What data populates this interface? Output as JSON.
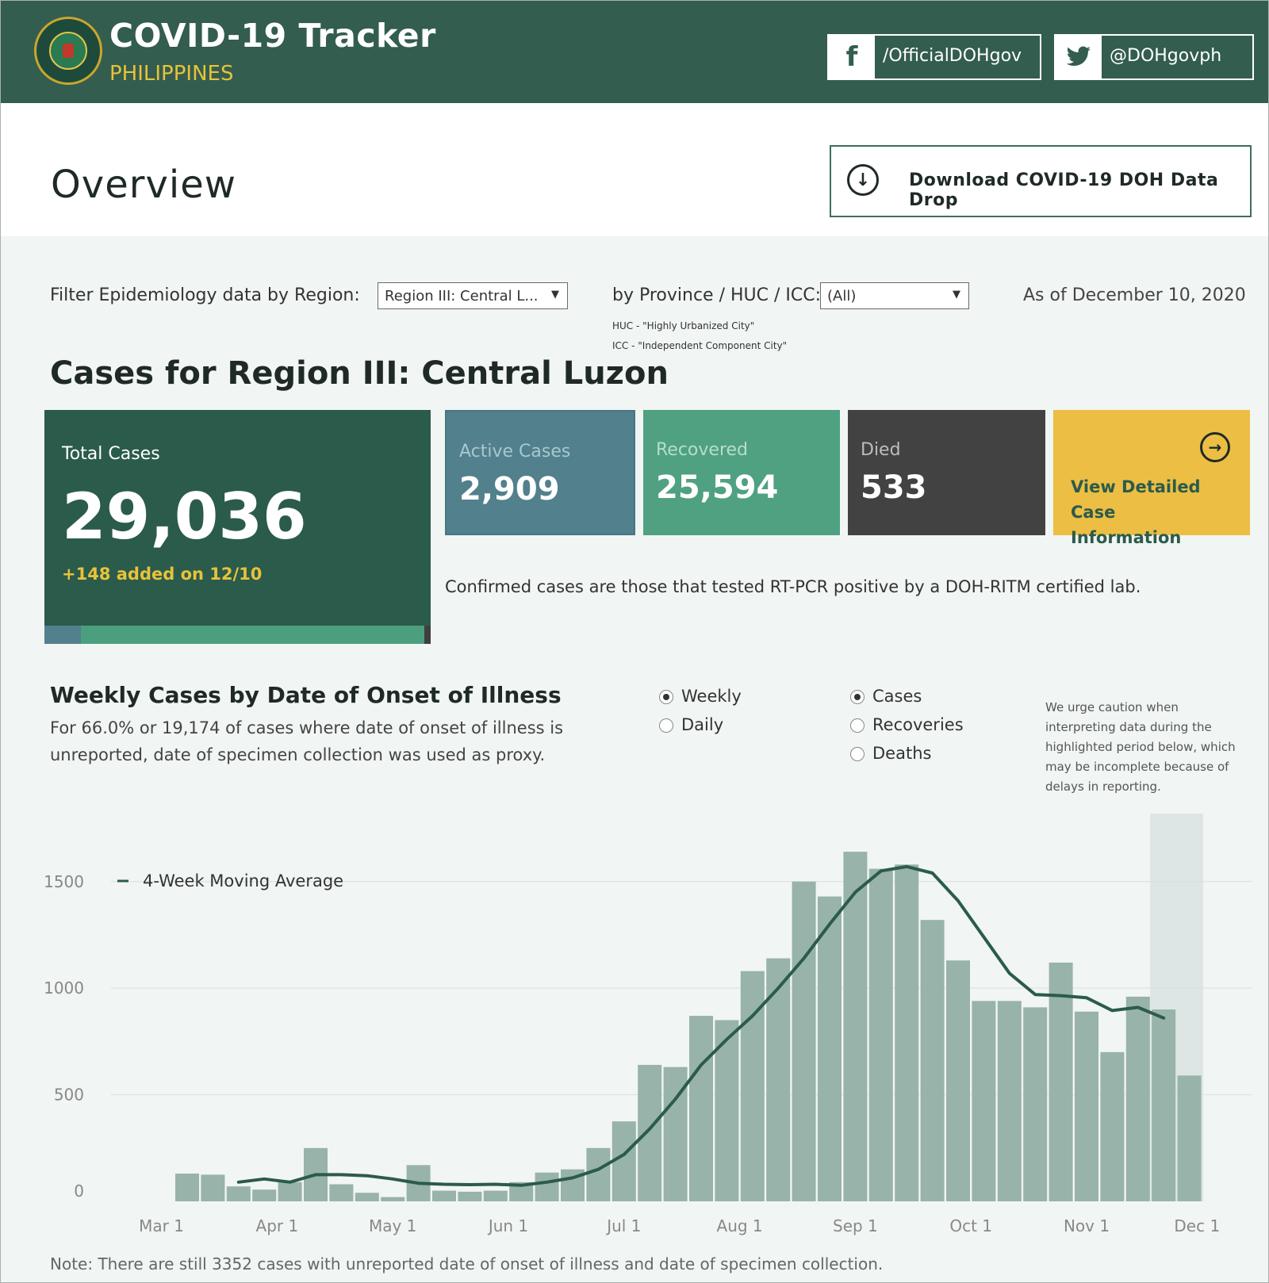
{
  "header": {
    "title": "COVID-19 Tracker",
    "subtitle": "PHILIPPINES",
    "facebook_label": "/OfficialDOHgov",
    "twitter_label": "@DOHgovph"
  },
  "overview": {
    "title": "Overview",
    "download_label": "Download COVID-19 DOH Data Drop"
  },
  "filters": {
    "region_label": "Filter Epidemiology data by Region:",
    "region_value": "Region III: Central L...",
    "province_label": "by Province / HUC / ICC:",
    "province_value": "(All)",
    "huc_note": "HUC - \"Highly Urbanized City\"",
    "icc_note": "ICC - \"Independent Component City\"",
    "as_of": "As of December 10, 2020"
  },
  "cases": {
    "title": "Cases for Region III: Central Luzon",
    "total_label": "Total Cases",
    "total_value": "29,036",
    "total_added": "+148 added on 12/10",
    "active_label": "Active Cases",
    "active_value": "2,909",
    "recovered_label": "Recovered",
    "recovered_value": "25,594",
    "died_label": "Died",
    "died_value": "533",
    "detail_label": "View Detailed Case Information",
    "confirmed_note": "Confirmed cases are those that tested RT-PCR positive by a DOH-RITM certified lab."
  },
  "weekly": {
    "title": "Weekly Cases by Date of Onset of Illness",
    "description": "For 66.0% or 19,174 of cases where date of onset of illness is unreported, date of specimen collection was used as proxy.",
    "radio_weekly": "Weekly",
    "radio_daily": "Daily",
    "radio_cases": "Cases",
    "radio_recoveries": "Recoveries",
    "radio_deaths": "Deaths",
    "caution": "We urge caution when interpreting data during the highlighted period below, which may be incomplete because of delays in reporting.",
    "footnote": "Note: There are still 3352 cases with unreported date of onset of illness and date of specimen collection."
  },
  "colors": {
    "header_bg": "#335d4e",
    "accent_yellow": "#ecbe43",
    "bar": "#98b3a9",
    "line": "#2b5b4b",
    "active": "#52808d",
    "recovered": "#4fa181",
    "died": "#424242"
  },
  "chart_data": {
    "type": "bar",
    "title": "Weekly Cases by Date of Onset of Illness",
    "xlabel": "",
    "ylabel": "",
    "ylim": [
      0,
      1700
    ],
    "yticks": [
      0,
      500,
      1000,
      1500
    ],
    "xtick_labels": [
      "Mar 1",
      "Apr 1",
      "May 1",
      "Jun 1",
      "Jul 1",
      "Aug 1",
      "Sep 1",
      "Oct 1",
      "Nov 1",
      "Dec 1"
    ],
    "xtick_bar_index": [
      -1,
      3.5,
      8,
      12.5,
      17,
      21.5,
      26,
      30.5,
      35,
      39.3
    ],
    "highlight_from_index": 38,
    "bar_values": [
      130,
      125,
      70,
      55,
      90,
      250,
      80,
      40,
      20,
      170,
      50,
      45,
      50,
      90,
      135,
      150,
      250,
      375,
      640,
      630,
      870,
      850,
      1080,
      1140,
      1500,
      1430,
      1640,
      1560,
      1580,
      1320,
      1130,
      940,
      940,
      910,
      1120,
      890,
      700,
      960,
      900,
      590
    ],
    "series": [
      {
        "name": "4-Week Moving Average",
        "start_index": 2,
        "values": [
          90,
          105,
          90,
          125,
          125,
          120,
          105,
          85,
          80,
          78,
          80,
          75,
          90,
          110,
          150,
          220,
          340,
          480,
          640,
          760,
          870,
          1000,
          1140,
          1300,
          1450,
          1550,
          1570,
          1540,
          1410,
          1240,
          1070,
          970,
          965,
          955,
          895,
          910,
          860
        ]
      }
    ],
    "legend": "4-Week Moving Average"
  }
}
